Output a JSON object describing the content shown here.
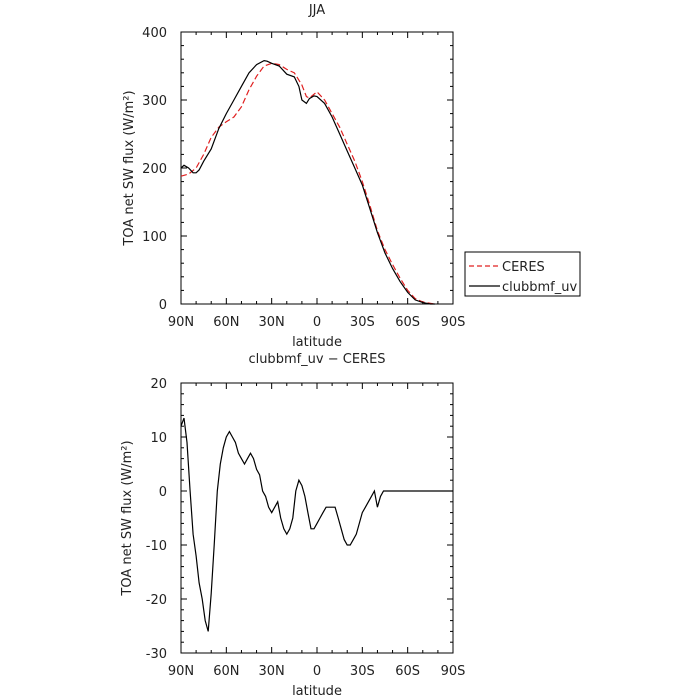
{
  "chart_data": [
    {
      "type": "line",
      "title": "JJA",
      "xlabel": "latitude",
      "ylabel": "TOA net SW flux (W/m²)",
      "xlim": [
        90,
        -90
      ],
      "ylim": [
        0,
        400
      ],
      "xticks": [
        "90N",
        "60N",
        "30N",
        "0",
        "30S",
        "60S",
        "90S"
      ],
      "yticks": [
        "0",
        "100",
        "200",
        "300",
        "400"
      ],
      "legend": "right, outside plot",
      "series": [
        {
          "name": "CERES",
          "color": "#e02020",
          "dash": "dashed",
          "x": [
            90,
            85,
            80,
            75,
            70,
            65,
            60,
            55,
            50,
            45,
            40,
            35,
            30,
            25,
            20,
            15,
            10,
            7,
            5,
            0,
            -5,
            -10,
            -15,
            -20,
            -25,
            -30,
            -35,
            -40,
            -45,
            -50,
            -55,
            -60,
            -65,
            -70,
            -75,
            -78
          ],
          "y": [
            188,
            191,
            200,
            220,
            245,
            260,
            268,
            275,
            290,
            315,
            335,
            350,
            354,
            352,
            345,
            340,
            322,
            305,
            303,
            312,
            300,
            280,
            260,
            235,
            210,
            180,
            145,
            108,
            80,
            58,
            38,
            20,
            8,
            3,
            1,
            0
          ]
        },
        {
          "name": "clubbmf_uv",
          "color": "#000000",
          "dash": "solid",
          "x": [
            90,
            88,
            85,
            82,
            80,
            78,
            75,
            70,
            65,
            60,
            55,
            50,
            45,
            40,
            35,
            33,
            30,
            25,
            20,
            15,
            12,
            10,
            7,
            5,
            2,
            0,
            -5,
            -10,
            -15,
            -20,
            -25,
            -30,
            -35,
            -40,
            -45,
            -50,
            -55,
            -60,
            -65,
            -70,
            -75,
            -78
          ],
          "y": [
            200,
            204,
            200,
            193,
            193,
            197,
            210,
            228,
            258,
            280,
            300,
            320,
            340,
            352,
            358,
            357,
            354,
            350,
            338,
            334,
            320,
            300,
            295,
            302,
            306,
            305,
            295,
            275,
            250,
            225,
            200,
            175,
            140,
            105,
            75,
            52,
            33,
            17,
            6,
            2,
            0,
            0
          ]
        }
      ]
    },
    {
      "type": "line",
      "title": "clubbmf_uv − CERES",
      "xlabel": "latitude",
      "ylabel": "TOA net SW flux (W/m²)",
      "xlim": [
        90,
        -90
      ],
      "ylim": [
        -30,
        20
      ],
      "xticks": [
        "90N",
        "60N",
        "30N",
        "0",
        "30S",
        "60S",
        "90S"
      ],
      "yticks": [
        "-30",
        "-20",
        "-10",
        "0",
        "10",
        "20"
      ],
      "series": [
        {
          "color": "#000000",
          "dash": "solid",
          "x": [
            90,
            88,
            86,
            84,
            82,
            80,
            78,
            76,
            74,
            72,
            70,
            68,
            66,
            64,
            62,
            60,
            58,
            56,
            54,
            52,
            50,
            48,
            46,
            44,
            42,
            40,
            38,
            36,
            34,
            32,
            30,
            28,
            26,
            24,
            22,
            20,
            18,
            16,
            14,
            12,
            10,
            8,
            6,
            4,
            2,
            0,
            -2,
            -4,
            -6,
            -8,
            -10,
            -12,
            -14,
            -16,
            -18,
            -20,
            -22,
            -24,
            -26,
            -28,
            -30,
            -32,
            -34,
            -36,
            -38,
            -40,
            -42,
            -44,
            -46,
            -48,
            -50,
            -52,
            -54,
            -56,
            -58,
            -60,
            -62,
            -64,
            -66,
            -68,
            -70,
            -72,
            -74,
            -76,
            -78,
            -80,
            -82,
            -84,
            -86,
            -88,
            -90
          ],
          "y": [
            12,
            13.5,
            9,
            0,
            -8,
            -12,
            -17,
            -20,
            -24,
            -26,
            -19,
            -10,
            0,
            5,
            8,
            10,
            11,
            10,
            9,
            7,
            6,
            5,
            6,
            7,
            6,
            4,
            3,
            0,
            -1,
            -3,
            -4,
            -3,
            -2,
            -5,
            -7,
            -8,
            -7,
            -5,
            0,
            2,
            1,
            -1,
            -4,
            -7,
            -7,
            -6,
            -5,
            -4,
            -3,
            -3,
            -3,
            -3,
            -5,
            -7,
            -9,
            -10,
            -10,
            -9,
            -8,
            -6,
            -4,
            -3,
            -2,
            -1,
            0,
            -3,
            -1,
            0,
            0,
            0,
            0,
            0,
            0,
            0,
            0,
            0,
            0,
            0,
            0,
            0,
            0,
            0,
            0,
            0,
            0,
            0,
            0,
            0,
            0,
            0,
            0
          ]
        }
      ]
    }
  ]
}
